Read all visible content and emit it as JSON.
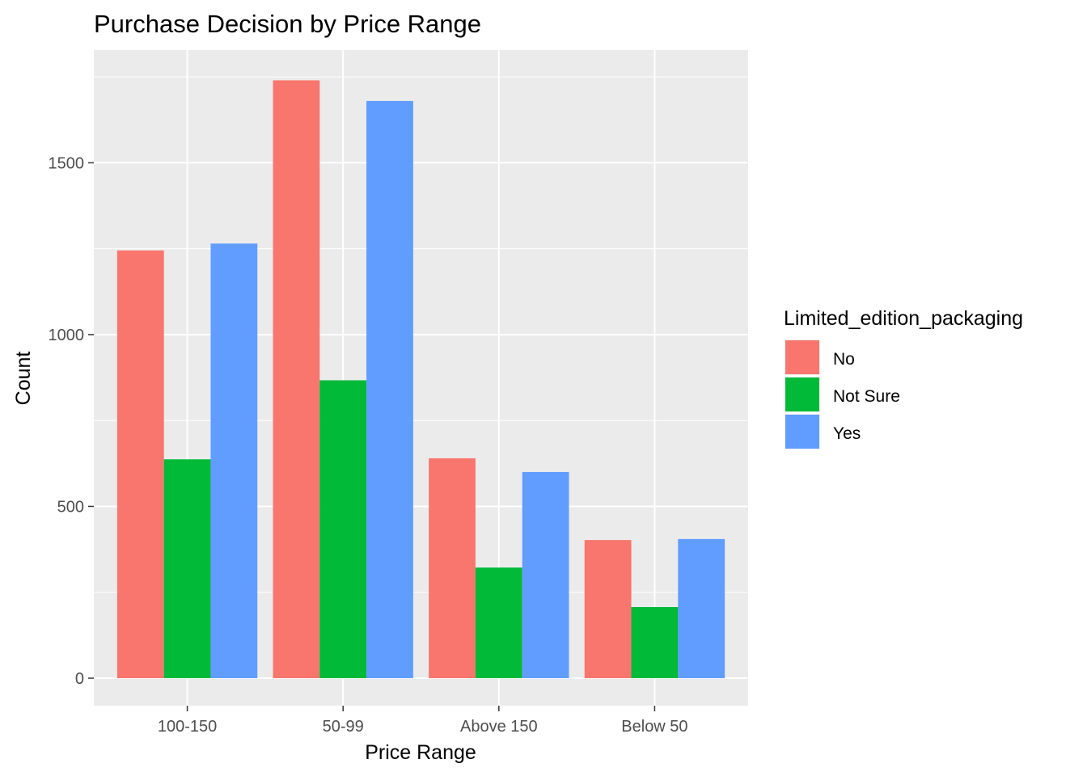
{
  "chart_data": {
    "type": "bar",
    "title": "Purchase Decision by Price Range",
    "xlabel": "Price Range",
    "ylabel": "Count",
    "categories": [
      "100-150",
      "50-99",
      "Above 150",
      "Below 50"
    ],
    "series": [
      {
        "name": "No",
        "color": "#F8766D",
        "values": [
          1245,
          1740,
          640,
          402
        ]
      },
      {
        "name": "Not Sure",
        "color": "#00BA38",
        "values": [
          637,
          867,
          322,
          207
        ]
      },
      {
        "name": "Yes",
        "color": "#619CFF",
        "values": [
          1265,
          1680,
          600,
          405
        ]
      }
    ],
    "ylim": [
      -80,
      1828
    ],
    "yticks": [
      0,
      500,
      1000,
      1500
    ],
    "grid": true,
    "legend": {
      "title": "Limited_edition_packaging",
      "position": "right"
    },
    "colors": {
      "panel_background": "#EBEBEB",
      "gridline": "#FFFFFF"
    }
  }
}
